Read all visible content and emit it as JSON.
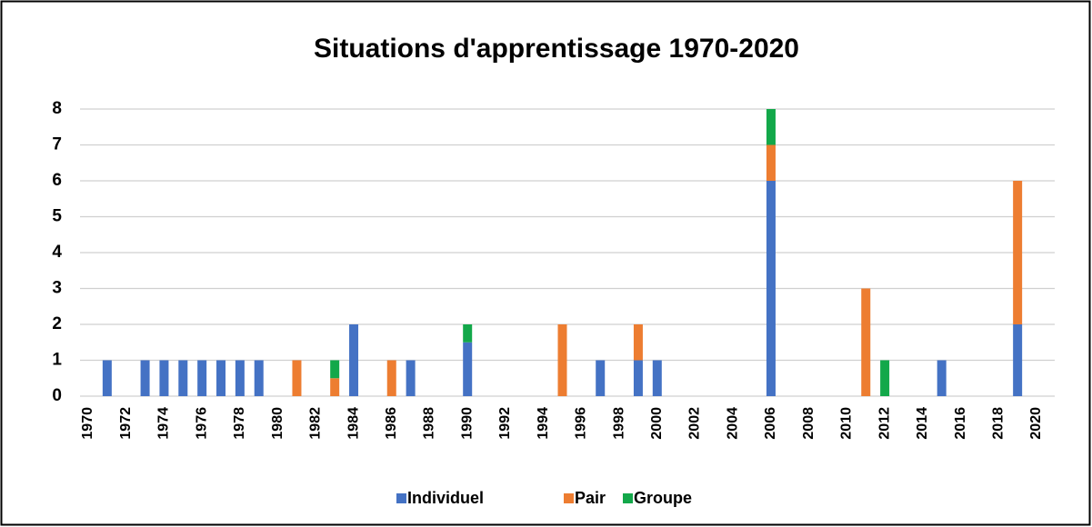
{
  "chart_data": {
    "type": "stacked_bar",
    "title": "Situations d'apprentissage 1970-2020",
    "categories": [
      "1970",
      null,
      "1972",
      null,
      "1974",
      null,
      "1976",
      null,
      "1978",
      null,
      "1980",
      null,
      "1982",
      null,
      "1984",
      null,
      "1986",
      null,
      "1988",
      null,
      "1990",
      null,
      "1992",
      null,
      "1994",
      null,
      "1996",
      null,
      "1998",
      null,
      "2000",
      null,
      "2002",
      null,
      "2004",
      null,
      "2006",
      null,
      "2008",
      null,
      "2010",
      null,
      "2012",
      null,
      "2014",
      null,
      "2016",
      null,
      "2018",
      null,
      "2020"
    ],
    "series": [
      {
        "name": "Individuel",
        "color": "#4472c4",
        "values": [
          0,
          1,
          0,
          1,
          1,
          1,
          1,
          1,
          1,
          1,
          0,
          0,
          0,
          0,
          2,
          0,
          0,
          1,
          0,
          0,
          1.5,
          0,
          0,
          0,
          0,
          0,
          0,
          1,
          0,
          1,
          1,
          0,
          0,
          0,
          0,
          0,
          6,
          0,
          0,
          0,
          0,
          0,
          0,
          0,
          0,
          1,
          0,
          0,
          0,
          2,
          0
        ]
      },
      {
        "name": "Pair",
        "color": "#ed7d31",
        "values": [
          0,
          0,
          0,
          0,
          0,
          0,
          0,
          0,
          0,
          0,
          0,
          1,
          0,
          0.5,
          0,
          0,
          1,
          0,
          0,
          0,
          0,
          0,
          0,
          0,
          0,
          2,
          0,
          0,
          0,
          1,
          0,
          0,
          0,
          0,
          0,
          0,
          1,
          0,
          0,
          0,
          0,
          3,
          0,
          0,
          0,
          0,
          0,
          0,
          0,
          4,
          0
        ]
      },
      {
        "name": "Groupe",
        "color": "#13a84a",
        "values": [
          0,
          0,
          0,
          0,
          0,
          0,
          0,
          0,
          0,
          0,
          0,
          0,
          0,
          0.5,
          0,
          0,
          0,
          0,
          0,
          0,
          0.5,
          0,
          0,
          0,
          0,
          0,
          0,
          0,
          0,
          0,
          0,
          0,
          0,
          0,
          0,
          0,
          1,
          0,
          0,
          0,
          0,
          0,
          1,
          0,
          0,
          0,
          0,
          0,
          0,
          0,
          0
        ]
      }
    ],
    "ylim": [
      0,
      8
    ],
    "yticks": [
      0,
      1,
      2,
      3,
      4,
      5,
      6,
      7,
      8
    ],
    "grid": true,
    "legend": "bottom"
  }
}
